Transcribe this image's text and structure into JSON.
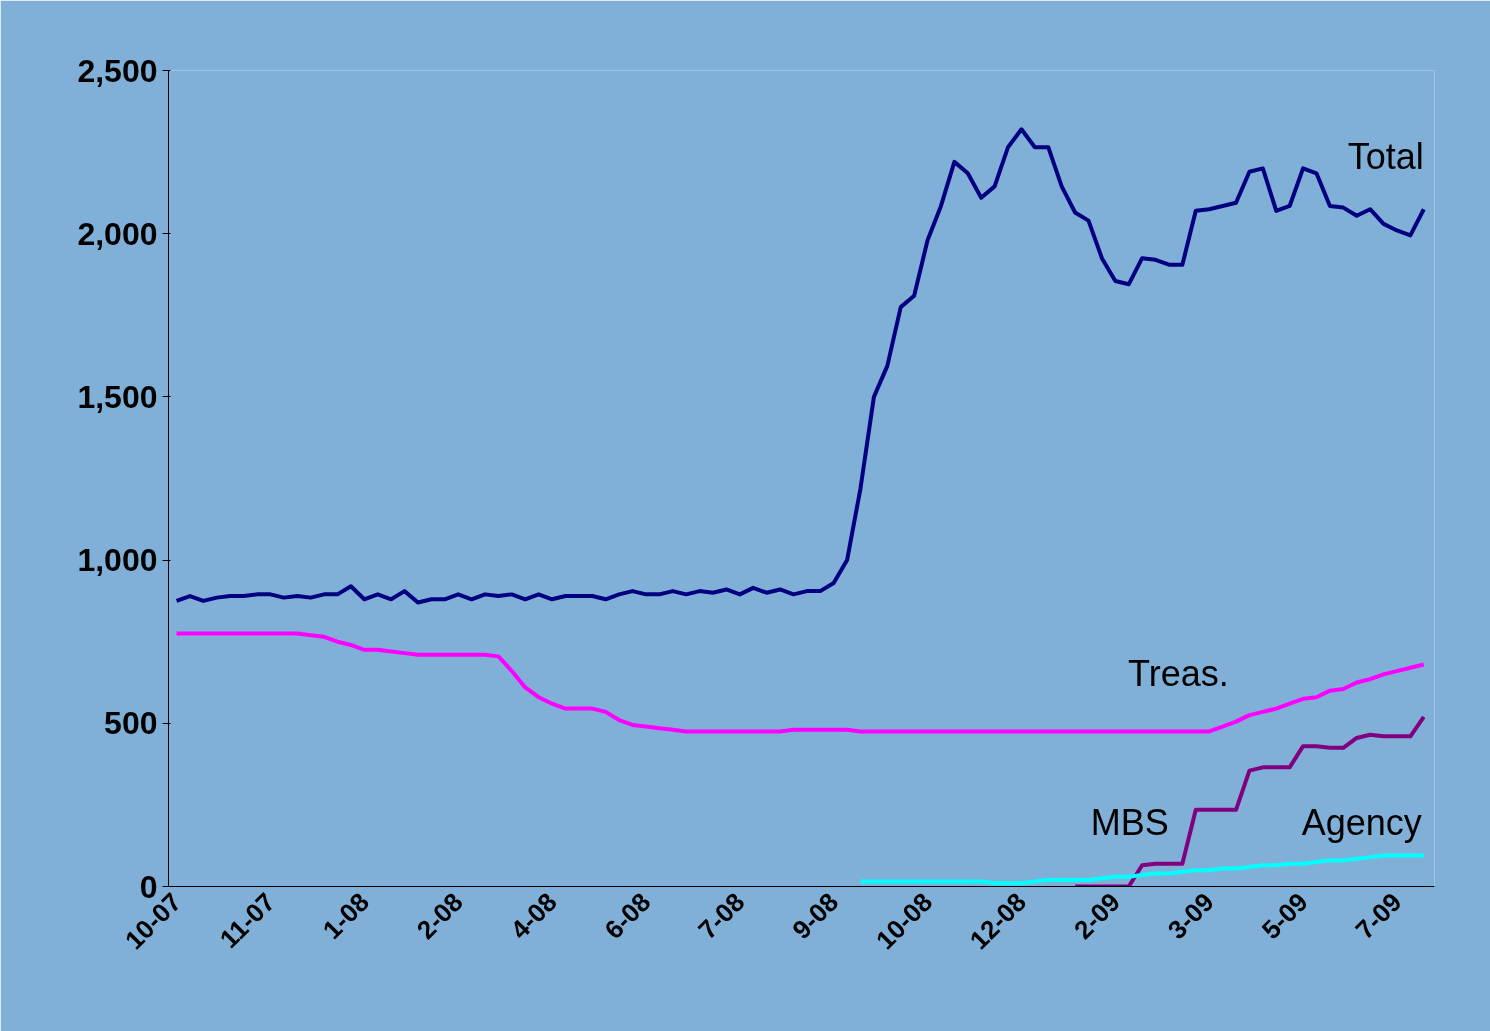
{
  "chart_data": {
    "type": "line",
    "categories": [
      "10-07",
      null,
      null,
      null,
      null,
      null,
      null,
      "11-07",
      null,
      null,
      null,
      null,
      null,
      null,
      "1-08",
      null,
      null,
      null,
      null,
      null,
      null,
      "2-08",
      null,
      null,
      null,
      null,
      null,
      null,
      "4-08",
      null,
      null,
      null,
      null,
      null,
      null,
      "6-08",
      null,
      null,
      null,
      null,
      null,
      null,
      "7-08",
      null,
      null,
      null,
      null,
      null,
      null,
      "9-08",
      null,
      null,
      null,
      null,
      null,
      null,
      "10-08",
      null,
      null,
      null,
      null,
      null,
      null,
      "12-08",
      null,
      null,
      null,
      null,
      null,
      null,
      "2-09",
      null,
      null,
      null,
      null,
      null,
      null,
      "3-09",
      null,
      null,
      null,
      null,
      null,
      null,
      "5-09",
      null,
      null,
      null,
      null,
      null,
      null,
      "7-09",
      null,
      null
    ],
    "series": [
      {
        "name": "Total",
        "color": "#000080",
        "values": [
          875,
          890,
          875,
          885,
          890,
          890,
          895,
          895,
          885,
          890,
          885,
          895,
          895,
          920,
          880,
          895,
          880,
          905,
          870,
          880,
          880,
          895,
          880,
          895,
          890,
          895,
          880,
          895,
          880,
          890,
          890,
          890,
          880,
          895,
          905,
          895,
          895,
          905,
          895,
          905,
          900,
          910,
          895,
          915,
          900,
          910,
          895,
          905,
          905,
          930,
          1000,
          1220,
          1500,
          1595,
          1775,
          1810,
          1980,
          2085,
          2220,
          2185,
          2110,
          2145,
          2265,
          2320,
          2265,
          2265,
          2145,
          2065,
          2040,
          1925,
          1855,
          1845,
          1925,
          1920,
          1905,
          1905,
          2070,
          2075,
          2085,
          2095,
          2190,
          2200,
          2070,
          2085,
          2200,
          2185,
          2085,
          2080,
          2055,
          2075,
          2030,
          2010,
          1995,
          2075
        ]
      },
      {
        "name": "Treas.",
        "color": "#ff00ff",
        "values": [
          775,
          775,
          775,
          775,
          775,
          775,
          775,
          775,
          775,
          775,
          770,
          765,
          750,
          740,
          725,
          725,
          720,
          715,
          710,
          710,
          710,
          710,
          710,
          710,
          705,
          660,
          610,
          580,
          560,
          545,
          545,
          545,
          535,
          510,
          495,
          490,
          485,
          480,
          475,
          475,
          475,
          475,
          475,
          475,
          475,
          475,
          480,
          480,
          480,
          480,
          480,
          475,
          475,
          475,
          475,
          475,
          475,
          475,
          475,
          475,
          475,
          475,
          475,
          475,
          475,
          475,
          475,
          475,
          475,
          475,
          475,
          475,
          475,
          475,
          475,
          475,
          475,
          475,
          490,
          505,
          525,
          535,
          545,
          560,
          575,
          580,
          600,
          605,
          625,
          635,
          650,
          660,
          670,
          680
        ]
      },
      {
        "name": "MBS",
        "color": "#800080",
        "values": [
          null,
          null,
          null,
          null,
          null,
          null,
          null,
          null,
          null,
          null,
          null,
          null,
          null,
          null,
          null,
          null,
          null,
          null,
          null,
          null,
          null,
          null,
          null,
          null,
          null,
          null,
          null,
          null,
          null,
          null,
          null,
          null,
          null,
          null,
          null,
          null,
          null,
          null,
          null,
          null,
          null,
          null,
          null,
          null,
          null,
          null,
          null,
          null,
          null,
          null,
          null,
          null,
          null,
          null,
          null,
          null,
          null,
          null,
          null,
          null,
          null,
          null,
          null,
          null,
          null,
          null,
          null,
          0,
          0,
          0,
          0,
          0,
          65,
          70,
          70,
          70,
          235,
          235,
          235,
          235,
          355,
          365,
          365,
          365,
          430,
          430,
          425,
          425,
          455,
          465,
          460,
          460,
          460,
          520
        ]
      },
      {
        "name": "Agency",
        "color": "#00ffff",
        "values": [
          null,
          null,
          null,
          null,
          null,
          null,
          null,
          null,
          null,
          null,
          null,
          null,
          null,
          null,
          null,
          null,
          null,
          null,
          null,
          null,
          null,
          null,
          null,
          null,
          null,
          null,
          null,
          null,
          null,
          null,
          null,
          null,
          null,
          null,
          null,
          null,
          null,
          null,
          null,
          null,
          null,
          null,
          null,
          null,
          null,
          null,
          null,
          null,
          null,
          null,
          null,
          15,
          15,
          15,
          15,
          15,
          15,
          15,
          15,
          15,
          15,
          10,
          10,
          10,
          15,
          20,
          20,
          20,
          20,
          25,
          30,
          30,
          35,
          40,
          40,
          45,
          50,
          50,
          55,
          55,
          60,
          65,
          65,
          70,
          70,
          75,
          80,
          80,
          85,
          90,
          95,
          95,
          95,
          95
        ]
      }
    ],
    "ylim": [
      0,
      2500
    ],
    "yticks": [
      0,
      500,
      {
        "value": 1000,
        "label": "1,000"
      },
      {
        "value": 1500,
        "label": "1,500"
      },
      {
        "value": 2000,
        "label": "2,000"
      },
      {
        "value": 2500,
        "label": "2,500"
      }
    ]
  }
}
